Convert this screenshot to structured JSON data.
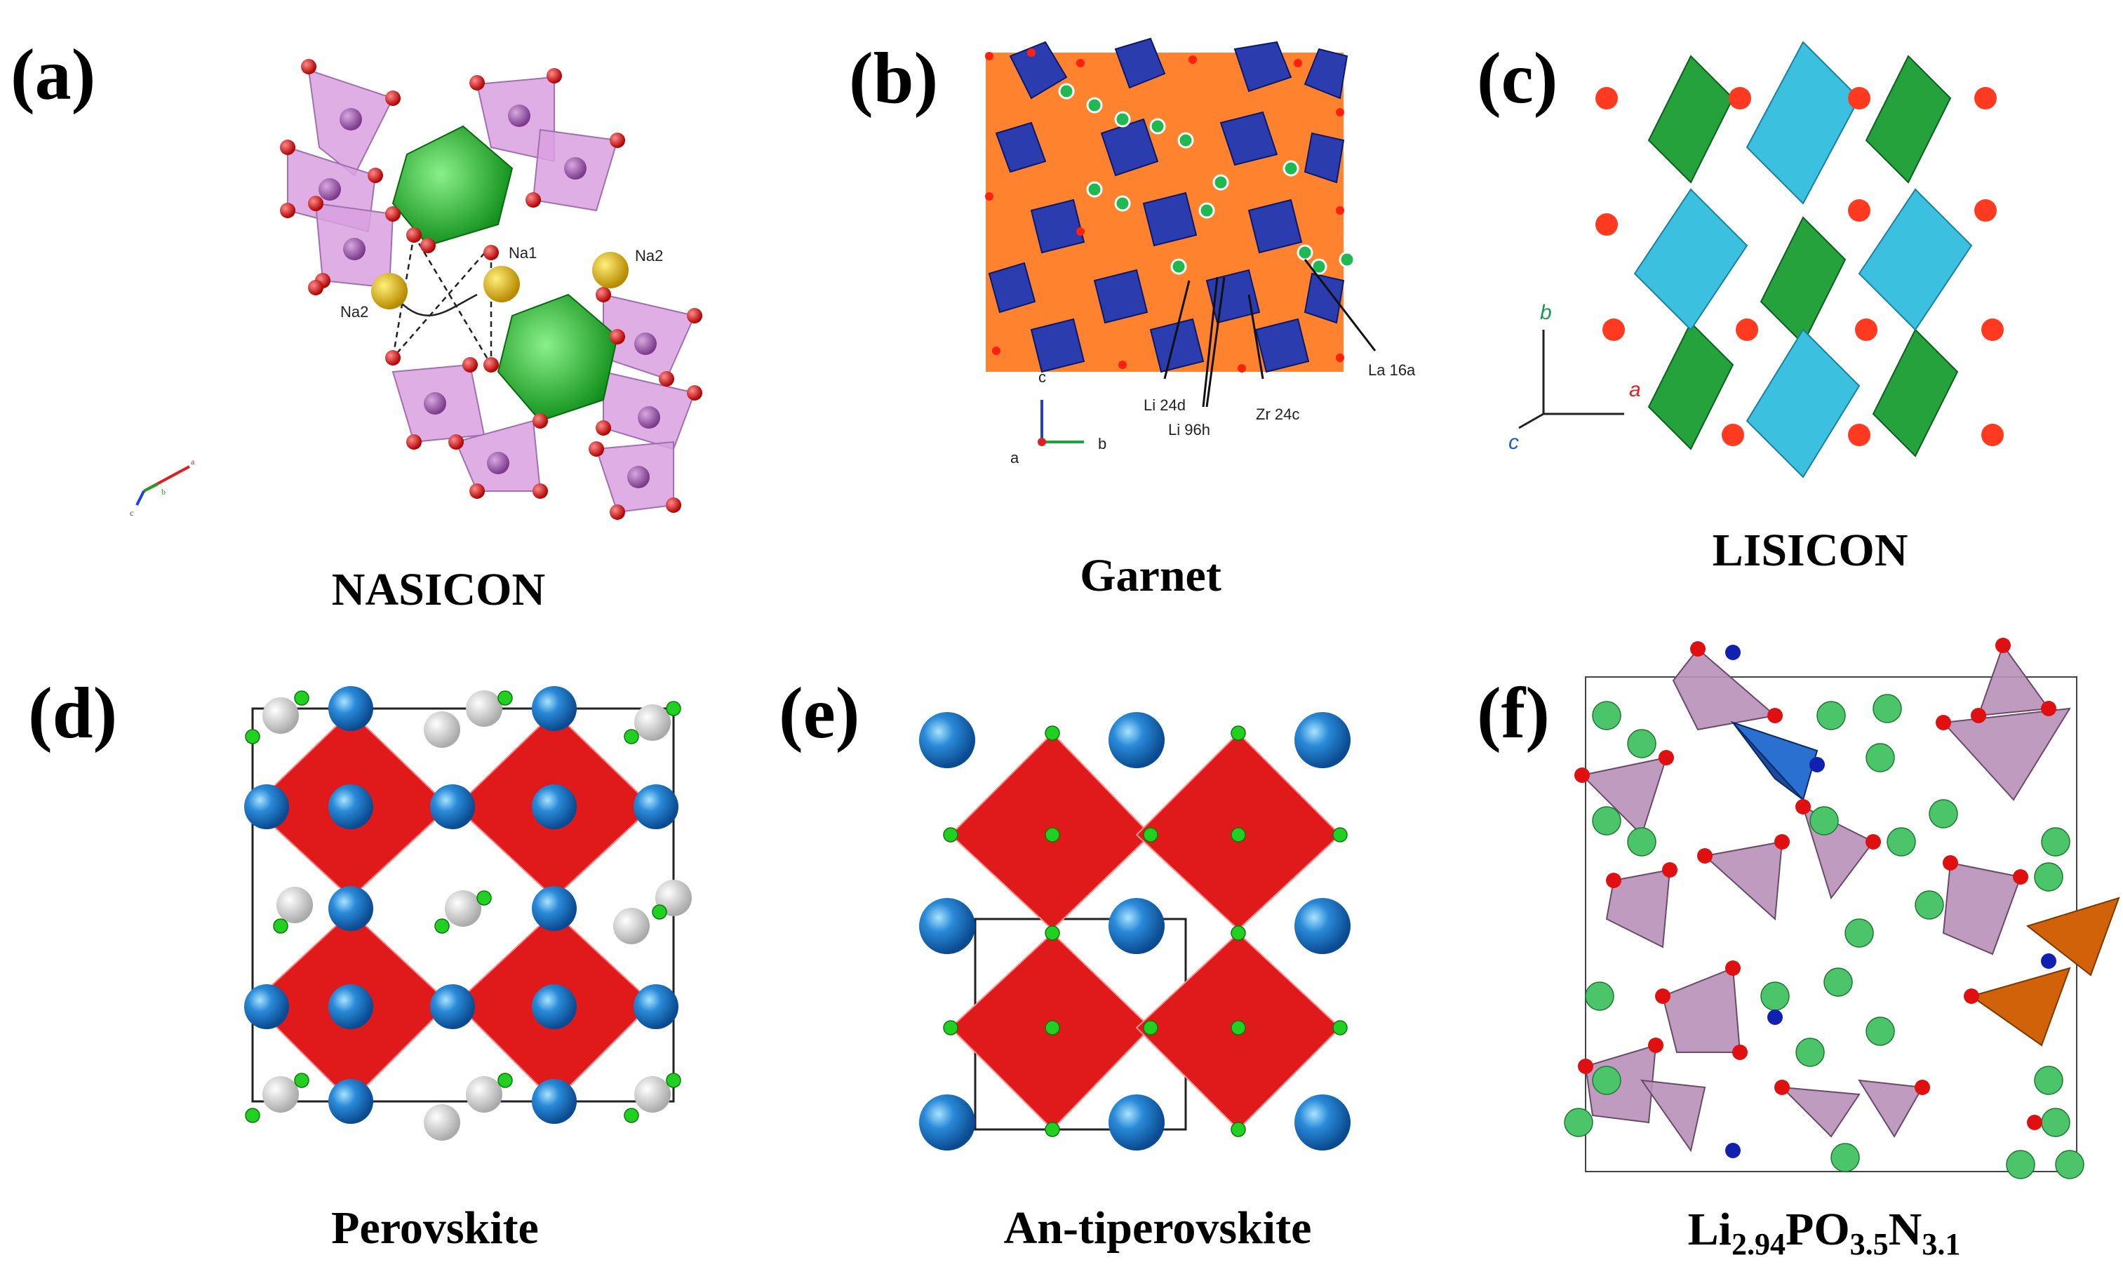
{
  "panels": {
    "a": {
      "label": "(a)",
      "caption": "NASICON",
      "annotations": [
        "Na1",
        "Na2",
        "Na2"
      ],
      "axis": [
        "a",
        "b",
        "c"
      ]
    },
    "b": {
      "label": "(b)",
      "caption": "Garnet",
      "annotations": [
        "Li 24d",
        "Li 96h",
        "Zr 24c",
        "La 16a"
      ],
      "axis": [
        "c",
        "a",
        "b"
      ]
    },
    "c": {
      "label": "(c)",
      "caption": "LISICON",
      "axis": [
        "b",
        "a",
        "c"
      ]
    },
    "d": {
      "label": "(d)",
      "caption": "Perovskite"
    },
    "e": {
      "label": "(e)",
      "caption": "An-tiperovskite"
    },
    "f": {
      "label": "(f)",
      "caption_parts": [
        "Li",
        "2.94",
        "PO",
        "3.5",
        "N",
        "3.1"
      ]
    }
  },
  "colors": {
    "nasicon_tetra": "#d9a0e0",
    "nasicon_octa": "#22c02a",
    "oxygen": "#e11010",
    "sodium": "#e8b800",
    "garnet_orange": "#ff6a10",
    "garnet_blue": "#2a3cae",
    "lisicon_green": "#25a23c",
    "lisicon_cyan": "#3cc0e0",
    "perov_red": "#e01a1a",
    "perov_blue": "#2a8ad8",
    "perov_green": "#22d022",
    "perov_white": "#eeeeee",
    "lipon_tetra": "#b891b8",
    "lipon_green": "#4cc46a",
    "lipon_blue": "#1a4aa0",
    "lipon_orange": "#d2620a"
  }
}
